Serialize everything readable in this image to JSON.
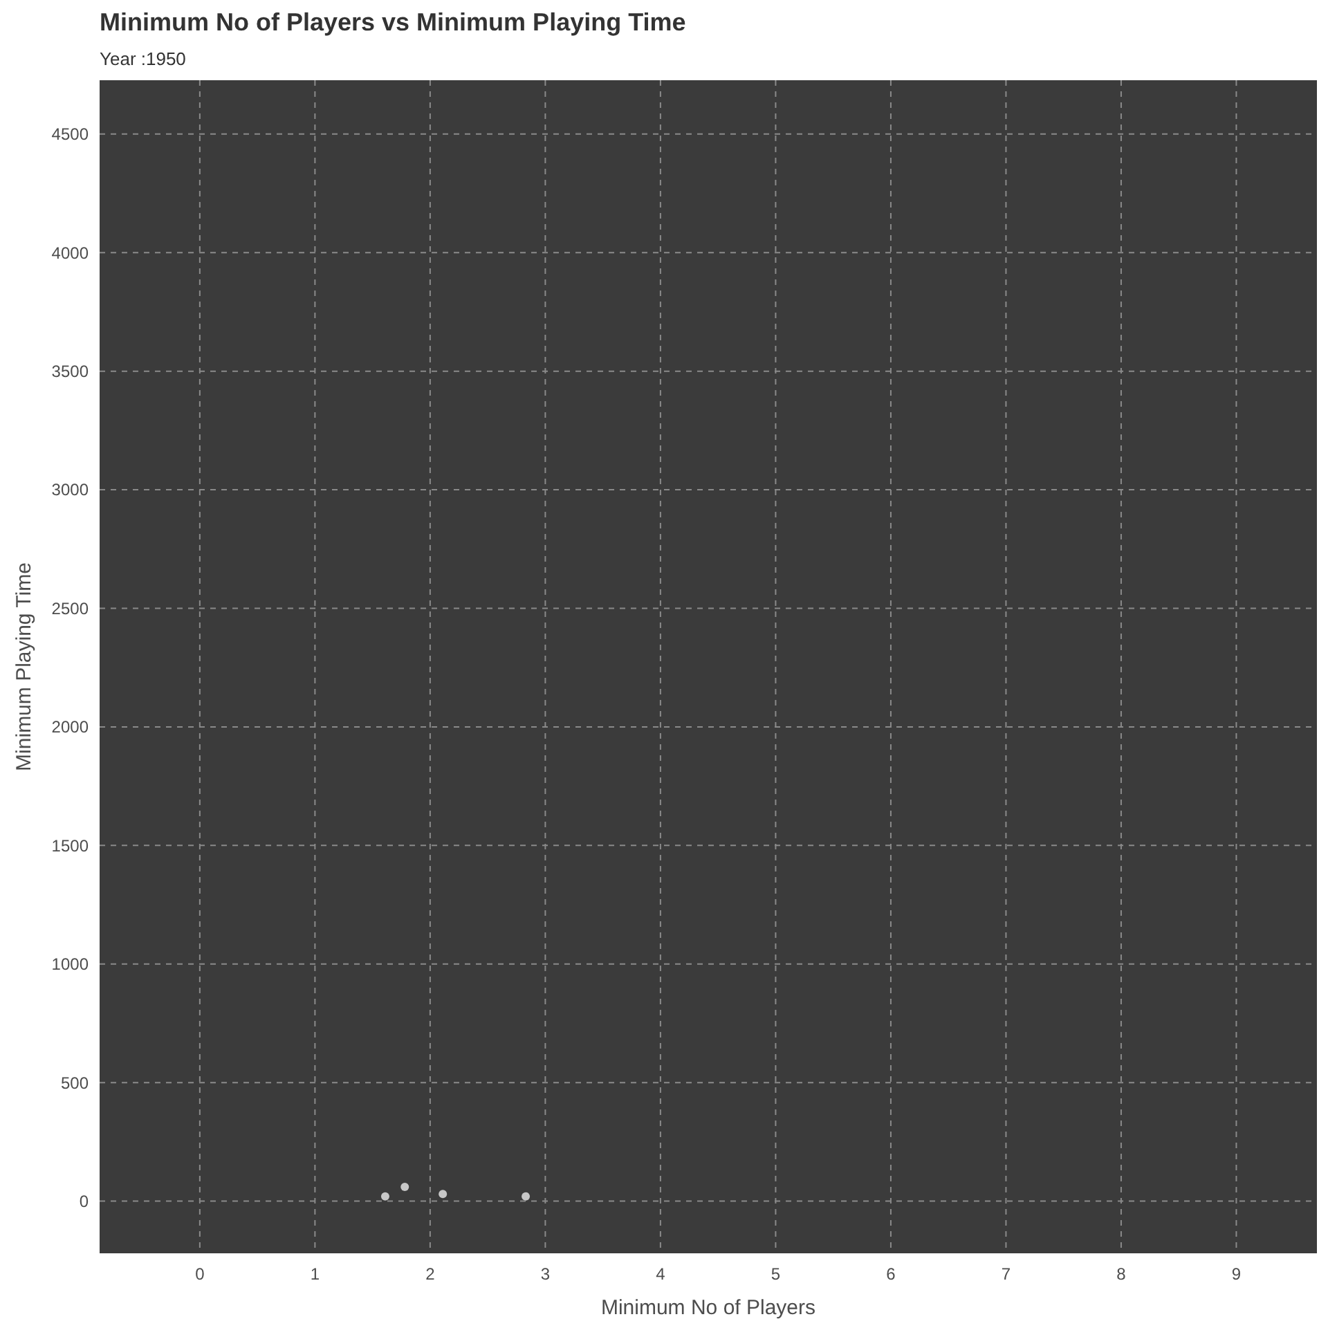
{
  "chart_data": {
    "type": "scatter",
    "title": "Minimum No of Players vs Minimum Playing Time",
    "subtitle": "Year :1950",
    "xlabel": "Minimum No of Players",
    "ylabel": "Minimum Playing Time",
    "x": [
      1.61,
      1.78,
      2.11,
      2.83
    ],
    "values": [
      20,
      60,
      30,
      20
    ],
    "color": "#c8c8c8",
    "marker": "circle",
    "xlim": [
      -0.87,
      9.7
    ],
    "xticks": [
      0,
      1,
      2,
      3,
      4,
      5,
      6,
      7,
      8,
      9
    ],
    "ylim": [
      -220,
      4727
    ],
    "yticks": [
      0,
      500,
      1000,
      1500,
      2000,
      2500,
      3000,
      3500,
      4000,
      4500
    ],
    "grid": true
  }
}
